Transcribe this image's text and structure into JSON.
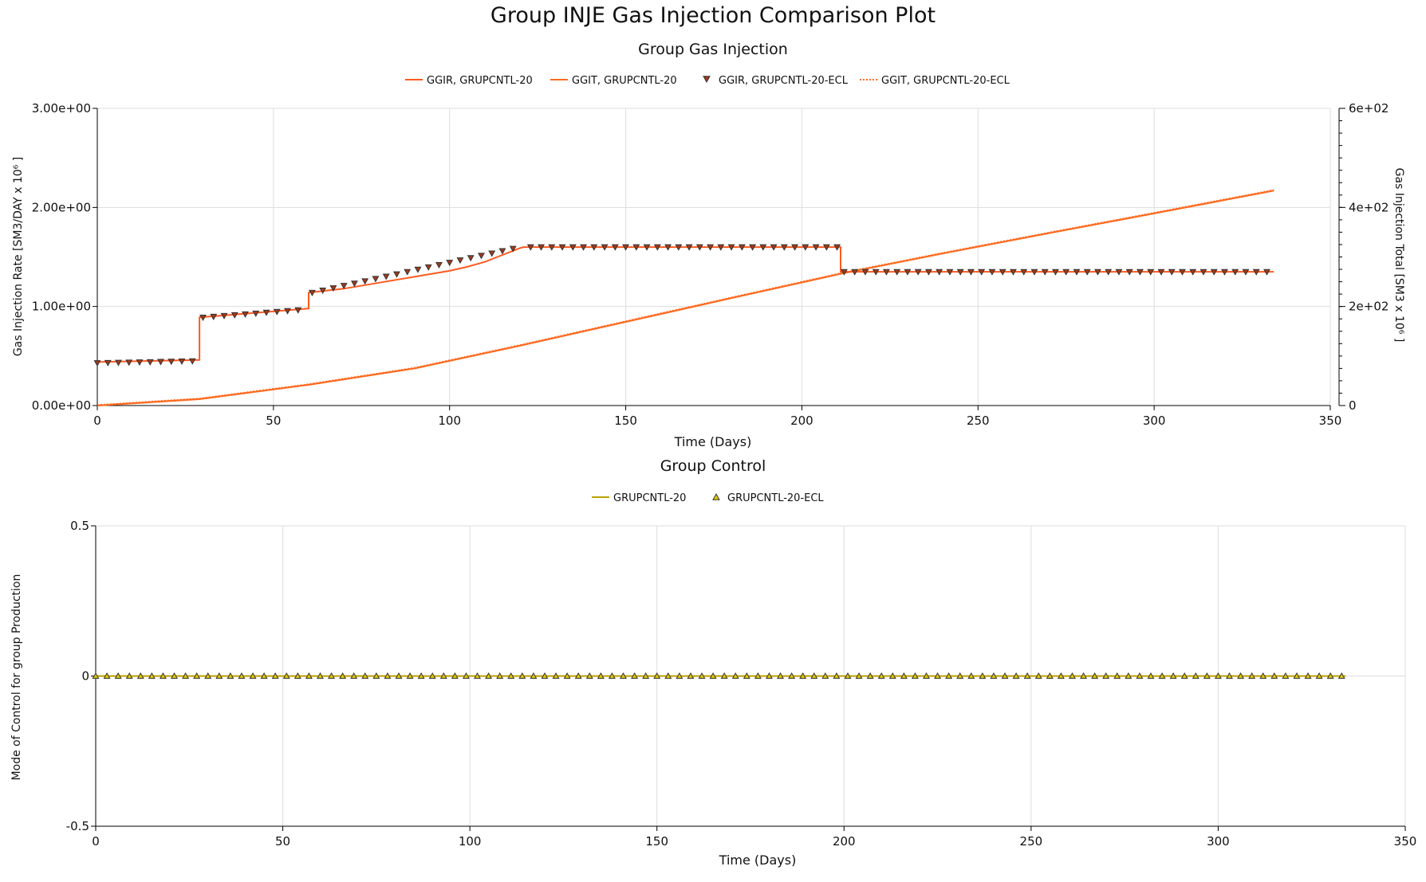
{
  "title": "Group INJE Gas Injection Comparison Plot",
  "colors": {
    "ggir": "#ff5a1f",
    "ggit": "#ff6a1f",
    "ecl_marker_fill": "#a03a1a",
    "control_line": "#b8a200",
    "control_marker_fill": "#e4c800",
    "grid": "#dddddd"
  },
  "chart_data": [
    {
      "type": "line",
      "title": "Group Gas Injection",
      "xlabel": "Time (Days)",
      "ylabel": "Gas Injection Rate [SM3/DAY x 10⁶ ]",
      "y2label": "Gas Injection Total [SM3 x 10⁶ ]",
      "xlim": [
        0,
        350
      ],
      "ylim": [
        0,
        3
      ],
      "y2lim": [
        0,
        600
      ],
      "x_ticks": [
        "0",
        "50",
        "100",
        "150",
        "200",
        "250",
        "300",
        "350"
      ],
      "y_ticks": [
        "0.00e+00",
        "1.00e+00",
        "2.00e+00",
        "3.00e+00"
      ],
      "y2_ticks": [
        "0",
        "2e+02",
        "4e+02",
        "6e+02"
      ],
      "legend": [
        "GGIR, GRUPCNTL-20",
        "GGIT, GRUPCNTL-20",
        "GGIR, GRUPCNTL-20-ECL",
        "GGIT, GRUPCNTL-20-ECL"
      ],
      "series": [
        {
          "name": "GGIR, GRUPCNTL-20",
          "axis": "left",
          "style": "step",
          "x": [
            0,
            29,
            29,
            60,
            60,
            70,
            80,
            90,
            100,
            105,
            110,
            115,
            120,
            121,
            211,
            211,
            334
          ],
          "y": [
            0.44,
            0.46,
            0.89,
            0.98,
            1.14,
            1.18,
            1.24,
            1.3,
            1.36,
            1.4,
            1.45,
            1.52,
            1.59,
            1.6,
            1.6,
            1.35,
            1.35
          ]
        },
        {
          "name": "GGIT, GRUPCNTL-20",
          "axis": "right",
          "style": "line",
          "x": [
            0,
            29,
            60,
            90,
            120,
            150,
            180,
            211,
            240,
            270,
            300,
            334
          ],
          "y": [
            0,
            13,
            42,
            75,
            121,
            169,
            217,
            266,
            307,
            348,
            388,
            434
          ]
        },
        {
          "name": "GGIR, GRUPCNTL-20-ECL",
          "axis": "left",
          "style": "markers",
          "marker": "triangle-down",
          "segments": [
            {
              "x0": 0,
              "x1": 28,
              "step": 3,
              "y0": 0.43,
              "y1": 0.45
            },
            {
              "x0": 30,
              "x1": 59,
              "step": 3,
              "y0": 0.89,
              "y1": 0.97
            },
            {
              "x0": 61,
              "x1": 120,
              "step": 3,
              "y0": 1.14,
              "y1": 1.6
            },
            {
              "x0": 123,
              "x1": 210,
              "step": 3,
              "y0": 1.6,
              "y1": 1.6
            },
            {
              "x0": 212,
              "x1": 334,
              "step": 3,
              "y0": 1.35,
              "y1": 1.35
            }
          ]
        },
        {
          "name": "GGIT, GRUPCNTL-20-ECL",
          "axis": "right",
          "style": "dotted",
          "x": [
            0,
            29,
            60,
            90,
            120,
            150,
            180,
            211,
            240,
            270,
            300,
            334
          ],
          "y": [
            0,
            13,
            42,
            75,
            121,
            169,
            217,
            266,
            307,
            348,
            388,
            434
          ]
        }
      ]
    },
    {
      "type": "line",
      "title": "Group Control",
      "xlabel": "Time (Days)",
      "ylabel": "Mode of Control for group Production",
      "xlim": [
        0,
        350
      ],
      "ylim": [
        -0.5,
        0.5
      ],
      "x_ticks": [
        "0",
        "50",
        "100",
        "150",
        "200",
        "250",
        "300",
        "350"
      ],
      "y_ticks": [
        "-0.5",
        "0",
        "0.5"
      ],
      "legend": [
        "GRUPCNTL-20",
        "GRUPCNTL-20-ECL"
      ],
      "series": [
        {
          "name": "GRUPCNTL-20",
          "style": "line",
          "x": [
            0,
            334
          ],
          "y": [
            0,
            0
          ]
        },
        {
          "name": "GRUPCNTL-20-ECL",
          "style": "markers",
          "marker": "triangle-up",
          "x_start": 0,
          "x_end": 334,
          "x_step": 3,
          "y": 0
        }
      ]
    }
  ]
}
